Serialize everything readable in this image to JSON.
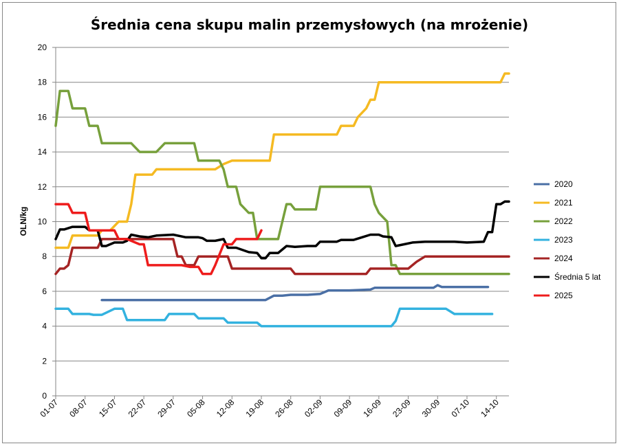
{
  "chart_data": {
    "type": "line",
    "title": "Średnia cena skupu malin przemysłowych (na mrożenie)",
    "xlabel": "",
    "ylabel": "OLN/kg",
    "ylim": [
      0,
      20
    ],
    "yticks": [
      0,
      2,
      4,
      6,
      8,
      10,
      12,
      14,
      16,
      18,
      20
    ],
    "grid": "horizontal",
    "legend_position": "right",
    "x_tick_labels": [
      "01-07",
      "08-07",
      "15-07",
      "22-07",
      "29-07",
      "05-08",
      "12-08",
      "19-08",
      "26-08",
      "02-09",
      "09-09",
      "16-09",
      "23-09",
      "30-09",
      "07-10",
      "14-10"
    ],
    "series": [
      {
        "name": "2020",
        "color": "#4A6FA5",
        "points": [
          [
            11,
            5.5
          ],
          [
            12,
            5.5
          ],
          [
            16,
            5.5
          ],
          [
            20,
            5.5
          ],
          [
            25,
            5.5
          ],
          [
            30,
            5.5
          ],
          [
            35,
            5.5
          ],
          [
            40,
            5.5
          ],
          [
            45,
            5.5
          ],
          [
            50,
            5.5
          ],
          [
            52,
            5.75
          ],
          [
            54,
            5.75
          ],
          [
            56,
            5.8
          ],
          [
            60,
            5.8
          ],
          [
            63,
            5.85
          ],
          [
            65,
            6.05
          ],
          [
            70,
            6.05
          ],
          [
            75,
            6.1
          ],
          [
            76,
            6.2
          ],
          [
            80,
            6.2
          ],
          [
            85,
            6.2
          ],
          [
            90,
            6.2
          ],
          [
            91,
            6.35
          ],
          [
            92,
            6.25
          ],
          [
            95,
            6.25
          ],
          [
            100,
            6.25
          ],
          [
            103,
            6.25
          ]
        ]
      },
      {
        "name": "2021",
        "color": "#F5BA22",
        "points": [
          [
            0,
            8.5
          ],
          [
            3,
            8.5
          ],
          [
            4,
            9.2
          ],
          [
            10,
            9.2
          ],
          [
            11,
            9.5
          ],
          [
            13,
            9.5
          ],
          [
            15,
            10
          ],
          [
            17,
            10
          ],
          [
            18,
            11
          ],
          [
            19,
            12.7
          ],
          [
            23,
            12.7
          ],
          [
            24,
            13
          ],
          [
            33,
            13
          ],
          [
            38,
            13
          ],
          [
            40,
            13.3
          ],
          [
            42,
            13.5
          ],
          [
            46,
            13.5
          ],
          [
            50,
            13.5
          ],
          [
            51,
            13.5
          ],
          [
            52,
            15
          ],
          [
            56,
            15
          ],
          [
            66,
            15
          ],
          [
            67,
            15
          ],
          [
            68,
            15.5
          ],
          [
            71,
            15.5
          ],
          [
            72,
            16
          ],
          [
            74,
            16.5
          ],
          [
            75,
            17
          ],
          [
            76,
            17
          ],
          [
            77,
            18
          ],
          [
            82,
            18
          ],
          [
            90,
            18
          ],
          [
            100,
            18
          ],
          [
            106,
            18
          ],
          [
            107,
            18.5
          ],
          [
            108,
            18.5
          ]
        ]
      },
      {
        "name": "2022",
        "color": "#77A03C",
        "points": [
          [
            0,
            15.5
          ],
          [
            1,
            17.5
          ],
          [
            3,
            17.5
          ],
          [
            4,
            16.5
          ],
          [
            7,
            16.5
          ],
          [
            8,
            15.5
          ],
          [
            10,
            15.5
          ],
          [
            11,
            14.5
          ],
          [
            18,
            14.5
          ],
          [
            20,
            14
          ],
          [
            24,
            14
          ],
          [
            26,
            14.5
          ],
          [
            33,
            14.5
          ],
          [
            34,
            13.5
          ],
          [
            38,
            13.5
          ],
          [
            39,
            13.5
          ],
          [
            40,
            13
          ],
          [
            41,
            12
          ],
          [
            43,
            12
          ],
          [
            44,
            11
          ],
          [
            46,
            10.5
          ],
          [
            47,
            10.5
          ],
          [
            48,
            9
          ],
          [
            53,
            9
          ],
          [
            54,
            10
          ],
          [
            55,
            11
          ],
          [
            56,
            11
          ],
          [
            57,
            10.7
          ],
          [
            62,
            10.7
          ],
          [
            63,
            12
          ],
          [
            75,
            12
          ],
          [
            76,
            11
          ],
          [
            77,
            10.5
          ],
          [
            79,
            10
          ],
          [
            80,
            7.5
          ],
          [
            81,
            7.5
          ],
          [
            82,
            7
          ],
          [
            108,
            7
          ]
        ]
      },
      {
        "name": "2023",
        "color": "#33B2DF",
        "points": [
          [
            0,
            5
          ],
          [
            3,
            5
          ],
          [
            4,
            4.7
          ],
          [
            8,
            4.7
          ],
          [
            9,
            4.65
          ],
          [
            11,
            4.65
          ],
          [
            14,
            5
          ],
          [
            16,
            5
          ],
          [
            17,
            4.35
          ],
          [
            26,
            4.35
          ],
          [
            27,
            4.7
          ],
          [
            33,
            4.7
          ],
          [
            34,
            4.45
          ],
          [
            40,
            4.45
          ],
          [
            41,
            4.2
          ],
          [
            48,
            4.2
          ],
          [
            49,
            4
          ],
          [
            80,
            4
          ],
          [
            81,
            4.3
          ],
          [
            82,
            5
          ],
          [
            89,
            5
          ],
          [
            93,
            5
          ],
          [
            95,
            4.7
          ],
          [
            99,
            4.7
          ],
          [
            104,
            4.7
          ]
        ]
      },
      {
        "name": "2024",
        "color": "#A52424",
        "points": [
          [
            0,
            7
          ],
          [
            1,
            7.3
          ],
          [
            2,
            7.3
          ],
          [
            3,
            7.5
          ],
          [
            4,
            8.5
          ],
          [
            10,
            8.5
          ],
          [
            11,
            9
          ],
          [
            12,
            9
          ],
          [
            18,
            9
          ],
          [
            25,
            9
          ],
          [
            28,
            9
          ],
          [
            29,
            8
          ],
          [
            30,
            8
          ],
          [
            31,
            7.5
          ],
          [
            33,
            7.5
          ],
          [
            34,
            8
          ],
          [
            41,
            8
          ],
          [
            42,
            7.3
          ],
          [
            45,
            7.3
          ],
          [
            56,
            7.3
          ],
          [
            57,
            7
          ],
          [
            74,
            7
          ],
          [
            75,
            7.3
          ],
          [
            84,
            7.3
          ],
          [
            86,
            7.7
          ],
          [
            88,
            8
          ],
          [
            108,
            8
          ]
        ]
      },
      {
        "name": "Średnia 5 lat",
        "color": "#000000",
        "points": [
          [
            0,
            9
          ],
          [
            1,
            9.55
          ],
          [
            2,
            9.55
          ],
          [
            4,
            9.7
          ],
          [
            7,
            9.7
          ],
          [
            8,
            9.5
          ],
          [
            10,
            9.5
          ],
          [
            11,
            8.6
          ],
          [
            12,
            8.6
          ],
          [
            14,
            8.8
          ],
          [
            16,
            8.8
          ],
          [
            17,
            8.9
          ],
          [
            18,
            9.25
          ],
          [
            20,
            9.15
          ],
          [
            22,
            9.1
          ],
          [
            24,
            9.2
          ],
          [
            28,
            9.25
          ],
          [
            31,
            9.1
          ],
          [
            34,
            9.1
          ],
          [
            35,
            9.05
          ],
          [
            36,
            8.9
          ],
          [
            38,
            8.9
          ],
          [
            40,
            9
          ],
          [
            41,
            8.5
          ],
          [
            43,
            8.5
          ],
          [
            46,
            8.25
          ],
          [
            48,
            8.2
          ],
          [
            49,
            7.9
          ],
          [
            50,
            7.9
          ],
          [
            51,
            8.2
          ],
          [
            53,
            8.2
          ],
          [
            55,
            8.6
          ],
          [
            57,
            8.55
          ],
          [
            60,
            8.6
          ],
          [
            62,
            8.6
          ],
          [
            63,
            8.85
          ],
          [
            67,
            8.85
          ],
          [
            68,
            8.95
          ],
          [
            71,
            8.95
          ],
          [
            73,
            9.1
          ],
          [
            75,
            9.25
          ],
          [
            77,
            9.25
          ],
          [
            78,
            9.15
          ],
          [
            80,
            9.1
          ],
          [
            81,
            8.6
          ],
          [
            83,
            8.7
          ],
          [
            85,
            8.8
          ],
          [
            88,
            8.85
          ],
          [
            95,
            8.85
          ],
          [
            98,
            8.8
          ],
          [
            102,
            8.85
          ],
          [
            103,
            9.4
          ],
          [
            104,
            9.4
          ],
          [
            105,
            11
          ],
          [
            106,
            11
          ],
          [
            107,
            11.15
          ],
          [
            108,
            11.15
          ]
        ]
      },
      {
        "name": "2025",
        "color": "#EE1C1C",
        "points": [
          [
            0,
            11
          ],
          [
            3,
            11
          ],
          [
            4,
            10.5
          ],
          [
            7,
            10.5
          ],
          [
            8,
            9.5
          ],
          [
            14,
            9.5
          ],
          [
            15,
            9
          ],
          [
            17,
            9
          ],
          [
            20,
            8.7
          ],
          [
            21,
            8.7
          ],
          [
            22,
            7.5
          ],
          [
            30,
            7.5
          ],
          [
            32,
            7.4
          ],
          [
            34,
            7.4
          ],
          [
            35,
            7
          ],
          [
            37,
            7
          ],
          [
            38,
            7.5
          ],
          [
            40,
            8.7
          ],
          [
            42,
            8.7
          ],
          [
            43,
            9
          ],
          [
            48,
            9
          ],
          [
            49,
            9.5
          ]
        ]
      }
    ]
  }
}
